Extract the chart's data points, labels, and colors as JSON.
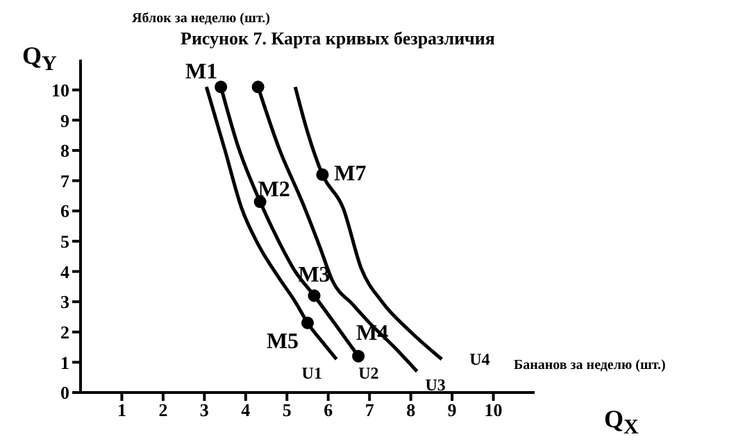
{
  "chart_data": {
    "type": "line",
    "title": "Рисунок 7. Карта кривых безразличия",
    "xlabel": "Бананов за неделю (шт.)",
    "ylabel": "Яблок за неделю (шт.)",
    "xlim": [
      0,
      11
    ],
    "ylim": [
      0,
      11
    ],
    "xticks": [
      1,
      2,
      3,
      4,
      5,
      6,
      7,
      8,
      9,
      10
    ],
    "yticks": [
      0,
      1,
      2,
      3,
      4,
      5,
      6,
      7,
      8,
      9,
      10
    ],
    "grid": false,
    "legend": false,
    "marker": "none",
    "line_style": "solid",
    "series": [
      {
        "name": "U1",
        "color": "#000000",
        "x": [
          3.05,
          3.5,
          3.9,
          4.3,
          4.8,
          5.2,
          5.5,
          5.9,
          6.2
        ],
        "values": [
          10.1,
          8,
          6.1,
          4.9,
          3.8,
          3,
          2.3,
          1.6,
          1.1
        ]
      },
      {
        "name": "U2",
        "color": "#000000",
        "x": [
          3.4,
          3.8,
          4.35,
          4.8,
          5.2,
          5.66,
          6.2,
          6.73
        ],
        "values": [
          10.1,
          8.2,
          6.3,
          5,
          4,
          3.2,
          2.2,
          1.2
        ]
      },
      {
        "name": "U3",
        "color": "#000000",
        "x": [
          4.3,
          4.8,
          5.4,
          5.8,
          6.1,
          6.6,
          7.0,
          7.6,
          8.15
        ],
        "values": [
          10.1,
          8.1,
          6.2,
          4.8,
          3.7,
          2.9,
          2.3,
          1.5,
          0.7
        ]
      },
      {
        "name": "U4",
        "color": "#000000",
        "x": [
          5.2,
          5.5,
          5.86,
          6.36,
          6.8,
          7.3,
          8.0,
          8.75
        ],
        "values": [
          10.1,
          8.6,
          7.2,
          6.1,
          4.1,
          3,
          2,
          1.1
        ]
      },
      {
        "type": "scatter",
        "color": "#000000",
        "marker": "circle",
        "x": [
          3.4,
          4.3,
          4.35,
          5.86,
          5.66,
          5.5,
          6.73
        ],
        "values": [
          10.1,
          10.1,
          6.3,
          7.2,
          3.2,
          2.3,
          1.2
        ]
      }
    ],
    "annotations": [
      "Q$_{Y}$",
      "Q$_{X}$",
      {
        "text": "M1",
        "x": 3.4,
        "y": 10.1
      },
      {
        "text": "M2",
        "x": 4.35,
        "y": 6.3
      },
      {
        "text": "M7",
        "x": 5.86,
        "y": 7.2
      },
      {
        "text": "M3",
        "x": 5.66,
        "y": 3.2
      },
      {
        "text": "M5",
        "x": 5.5,
        "y": 2.3
      },
      {
        "text": "M4",
        "x": 6.73,
        "y": 1.2
      }
    ]
  }
}
